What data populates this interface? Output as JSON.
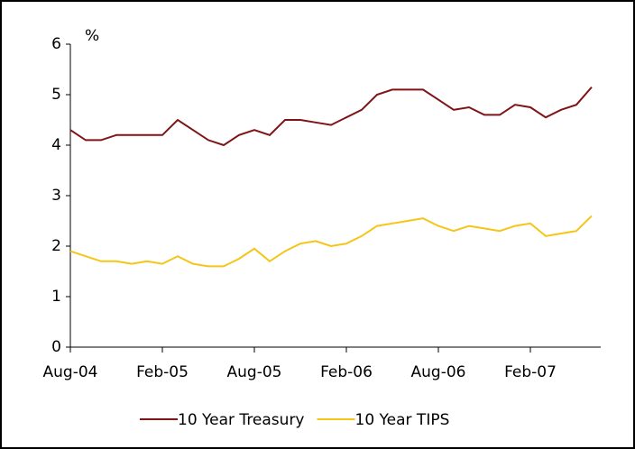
{
  "chart_data": {
    "type": "line",
    "ylabel": "%",
    "x": [
      "Aug-04",
      "Sep-04",
      "Oct-04",
      "Nov-04",
      "Dec-04",
      "Jan-05",
      "Feb-05",
      "Mar-05",
      "Apr-05",
      "May-05",
      "Jun-05",
      "Jul-05",
      "Aug-05",
      "Sep-05",
      "Oct-05",
      "Nov-05",
      "Dec-05",
      "Jan-06",
      "Feb-06",
      "Mar-06",
      "Apr-06",
      "May-06",
      "Jun-06",
      "Jul-06",
      "Aug-06",
      "Sep-06",
      "Oct-06",
      "Nov-06",
      "Dec-06",
      "Jan-07",
      "Feb-07",
      "Mar-07",
      "Apr-07",
      "May-07",
      "Jun-07"
    ],
    "xticks": [
      "Aug-04",
      "Feb-05",
      "Aug-05",
      "Feb-06",
      "Aug-06",
      "Feb-07"
    ],
    "series": [
      {
        "name": "10 Year Treasury",
        "color": "#7f1416",
        "values": [
          4.3,
          4.1,
          4.1,
          4.2,
          4.2,
          4.2,
          4.2,
          4.5,
          4.3,
          4.1,
          4.0,
          4.2,
          4.3,
          4.2,
          4.5,
          4.5,
          4.45,
          4.4,
          4.55,
          4.7,
          5.0,
          5.1,
          5.1,
          5.1,
          4.9,
          4.7,
          4.75,
          4.6,
          4.6,
          4.8,
          4.75,
          4.55,
          4.7,
          4.8,
          5.15
        ]
      },
      {
        "name": "10 Year TIPS",
        "color": "#f5c518",
        "values": [
          1.9,
          1.8,
          1.7,
          1.7,
          1.65,
          1.7,
          1.65,
          1.8,
          1.65,
          1.6,
          1.6,
          1.75,
          1.95,
          1.7,
          1.9,
          2.05,
          2.1,
          2.0,
          2.05,
          2.2,
          2.4,
          2.45,
          2.5,
          2.55,
          2.4,
          2.3,
          2.4,
          2.35,
          2.3,
          2.4,
          2.45,
          2.2,
          2.25,
          2.3,
          2.6
        ]
      }
    ],
    "ylim": [
      0,
      6
    ],
    "yticks": [
      0,
      1,
      2,
      3,
      4,
      5,
      6
    ],
    "legend": "bottom"
  }
}
